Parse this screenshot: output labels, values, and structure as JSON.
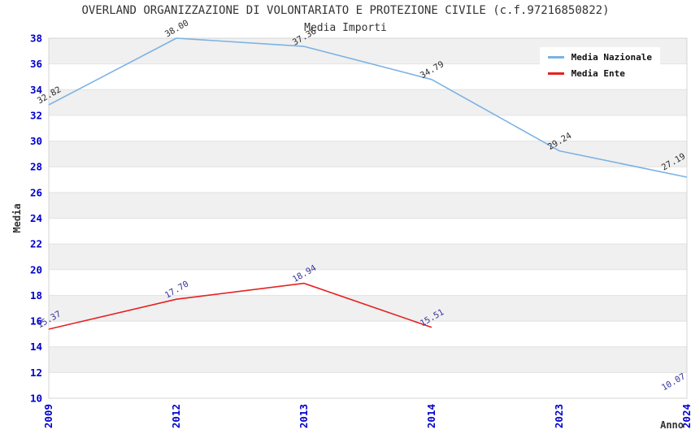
{
  "title": "OVERLAND ORGANIZZAZIONE DI VOLONTARIATO E PROTEZIONE CIVILE (c.f.97216850822)",
  "subtitle": "Media Importi",
  "legend": {
    "items": [
      {
        "label": "Media Nazionale",
        "color": "#7CB2E3"
      },
      {
        "label": "Media Ente",
        "color": "#E52222"
      }
    ]
  },
  "chart_data": {
    "type": "line",
    "title": "OVERLAND ORGANIZZAZIONE DI VOLONTARIATO E PROTEZIONE CIVILE (c.f.97216850822)",
    "subtitle": "Media Importi",
    "categories": [
      "2009",
      "2012",
      "2013",
      "2014",
      "2023",
      "2024"
    ],
    "series": [
      {
        "name": "Media Nazionale",
        "color": "#7CB2E3",
        "values": [
          32.82,
          38.0,
          37.36,
          34.79,
          29.24,
          27.19
        ],
        "point_labels": [
          "32.82",
          "38.00",
          "37.36",
          "34.79",
          "29.24",
          "27.19"
        ],
        "label_color": "#2B2B2B"
      },
      {
        "name": "Media Ente",
        "color": "#E52222",
        "values": [
          15.37,
          17.7,
          18.94,
          15.51,
          null,
          10.07
        ],
        "point_labels": [
          "15.37",
          "17.70",
          "18.94",
          "15.51",
          null,
          "10.07"
        ],
        "label_color": "#333399"
      }
    ],
    "xlabel": "Anno",
    "ylabel": "Media",
    "ylim": [
      10,
      38
    ],
    "ytick_step": 2,
    "ytick_labels": [
      "10",
      "12",
      "14",
      "16",
      "18",
      "20",
      "22",
      "24",
      "26",
      "28",
      "30",
      "32",
      "34",
      "36",
      "38"
    ],
    "grid": "horizontal-bands",
    "legend_position": "top-right",
    "style": {
      "tick_label_color": "#0000CC",
      "band_color": "#F0F0F0",
      "gridline_color": "#E2E2E2",
      "border_color": "#D4D4D4",
      "axis_title_color": "#333333"
    }
  }
}
